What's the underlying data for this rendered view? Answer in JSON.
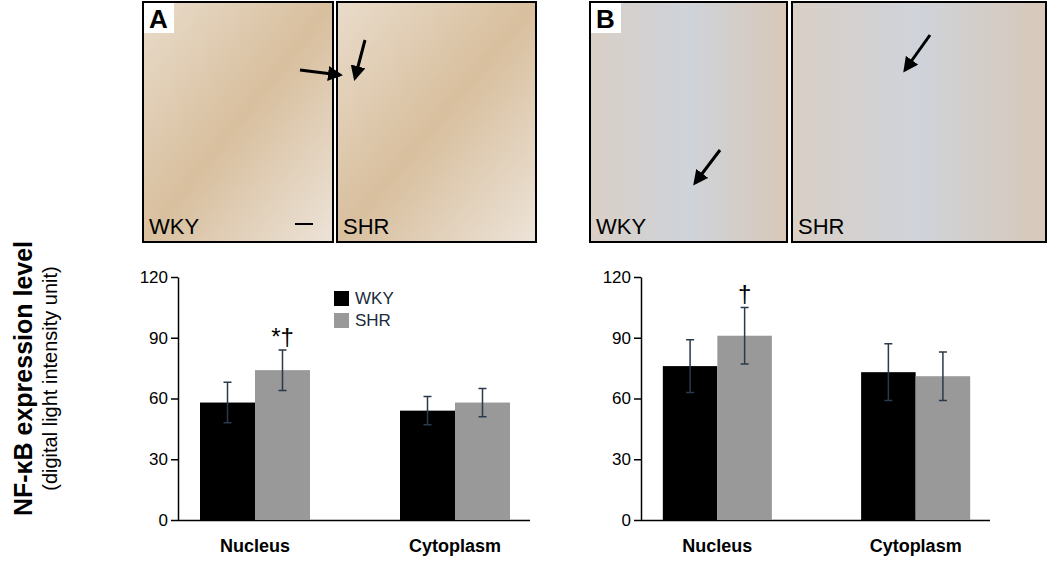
{
  "panels": [
    {
      "label": "A",
      "images": [
        "WKY",
        "SHR"
      ]
    },
    {
      "label": "B",
      "images": [
        "WKY",
        "SHR"
      ]
    }
  ],
  "chart_data": [
    {
      "type": "bar",
      "y_label": [
        "NF-κB expression level",
        "(digital light intensity unit)"
      ],
      "categories": [
        "Nucleus",
        "Cytoplasm"
      ],
      "series": [
        {
          "name": "WKY",
          "color": "#000000",
          "values": [
            58,
            54
          ],
          "errors": [
            10,
            7
          ]
        },
        {
          "name": "SHR",
          "color": "#999999",
          "values": [
            74,
            58
          ],
          "errors": [
            10,
            7
          ]
        }
      ],
      "ylim": [
        0,
        120
      ],
      "yticks": [
        0,
        30,
        60,
        90,
        120
      ],
      "legend": "top",
      "annotations": [
        {
          "text": "*†",
          "series": 1,
          "category": 0
        }
      ]
    },
    {
      "type": "bar",
      "categories": [
        "Nucleus",
        "Cytoplasm"
      ],
      "series": [
        {
          "name": "WKY",
          "color": "#000000",
          "values": [
            76,
            73
          ],
          "errors": [
            13,
            14
          ]
        },
        {
          "name": "SHR",
          "color": "#999999",
          "values": [
            91,
            71
          ],
          "errors": [
            14,
            12
          ]
        }
      ],
      "ylim": [
        0,
        120
      ],
      "yticks": [
        0,
        30,
        60,
        90,
        120
      ],
      "annotations": [
        {
          "text": "†",
          "series": 1,
          "category": 0
        }
      ]
    }
  ]
}
